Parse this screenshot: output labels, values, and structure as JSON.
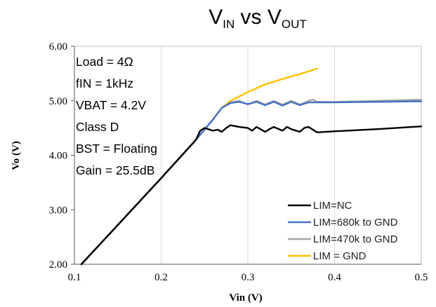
{
  "chart_data": {
    "type": "line",
    "title": {
      "main": "V",
      "sub1": "IN",
      "mid": " vs V",
      "sub2": "OUT"
    },
    "xlabel": "Vin (V)",
    "ylabel": "Vo (V)",
    "xlim": [
      0.1,
      0.5
    ],
    "ylim": [
      2.0,
      6.0
    ],
    "x_ticks": [
      "0.1",
      "0.2",
      "0.3",
      "0.4",
      "0.5"
    ],
    "y_ticks": [
      "2.00",
      "3.00",
      "4.00",
      "5.00",
      "6.00"
    ],
    "grid": "vertical",
    "legend_position": "bottom-right",
    "annotations": [
      "Load = 4Ω",
      "fIN = 1kHz",
      "VBAT = 4.2V",
      "Class D",
      "BST = Floating",
      "Gain = 25.5dB"
    ],
    "series": [
      {
        "name": "LIM = GND",
        "color": "#FFC000",
        "x": [
          0.108,
          0.15,
          0.2,
          0.24,
          0.26,
          0.27,
          0.28,
          0.3,
          0.32,
          0.34,
          0.36,
          0.38
        ],
        "y": [
          2.0,
          2.72,
          3.58,
          4.28,
          4.66,
          4.87,
          5.0,
          5.16,
          5.3,
          5.4,
          5.49,
          5.59
        ]
      },
      {
        "name": "LIM=470k to GND",
        "color": "#A5A5A5",
        "x": [
          0.108,
          0.15,
          0.2,
          0.24,
          0.26,
          0.27,
          0.28,
          0.29,
          0.3,
          0.31,
          0.32,
          0.33,
          0.34,
          0.35,
          0.36,
          0.37,
          0.375,
          0.38,
          0.4,
          0.45,
          0.5
        ],
        "y": [
          2.0,
          2.72,
          3.58,
          4.28,
          4.66,
          4.87,
          4.97,
          5.0,
          4.93,
          5.0,
          4.93,
          5.0,
          4.93,
          5.0,
          4.93,
          5.0,
          5.02,
          4.98,
          4.98,
          5.0,
          5.02
        ]
      },
      {
        "name": "LIM=680k to GND",
        "color": "#4472C4",
        "x": [
          0.108,
          0.15,
          0.2,
          0.24,
          0.26,
          0.27,
          0.28,
          0.29,
          0.3,
          0.31,
          0.32,
          0.33,
          0.34,
          0.35,
          0.36,
          0.37,
          0.375,
          0.38,
          0.4,
          0.45,
          0.5
        ],
        "y": [
          2.0,
          2.72,
          3.58,
          4.28,
          4.66,
          4.87,
          4.96,
          4.98,
          4.94,
          4.98,
          4.92,
          4.98,
          4.91,
          4.98,
          4.92,
          4.97,
          4.97,
          4.97,
          4.97,
          4.98,
          4.99
        ]
      },
      {
        "name": "LIM=NC",
        "color": "#000000",
        "x": [
          0.108,
          0.15,
          0.2,
          0.24,
          0.245,
          0.25,
          0.26,
          0.265,
          0.27,
          0.275,
          0.28,
          0.29,
          0.3,
          0.305,
          0.31,
          0.32,
          0.325,
          0.33,
          0.34,
          0.345,
          0.35,
          0.36,
          0.365,
          0.37,
          0.38,
          0.4,
          0.45,
          0.5
        ],
        "y": [
          2.0,
          2.72,
          3.58,
          4.28,
          4.45,
          4.5,
          4.45,
          4.47,
          4.43,
          4.5,
          4.55,
          4.52,
          4.5,
          4.45,
          4.52,
          4.43,
          4.48,
          4.52,
          4.45,
          4.52,
          4.48,
          4.43,
          4.5,
          4.52,
          4.42,
          4.44,
          4.48,
          4.53
        ]
      }
    ]
  }
}
